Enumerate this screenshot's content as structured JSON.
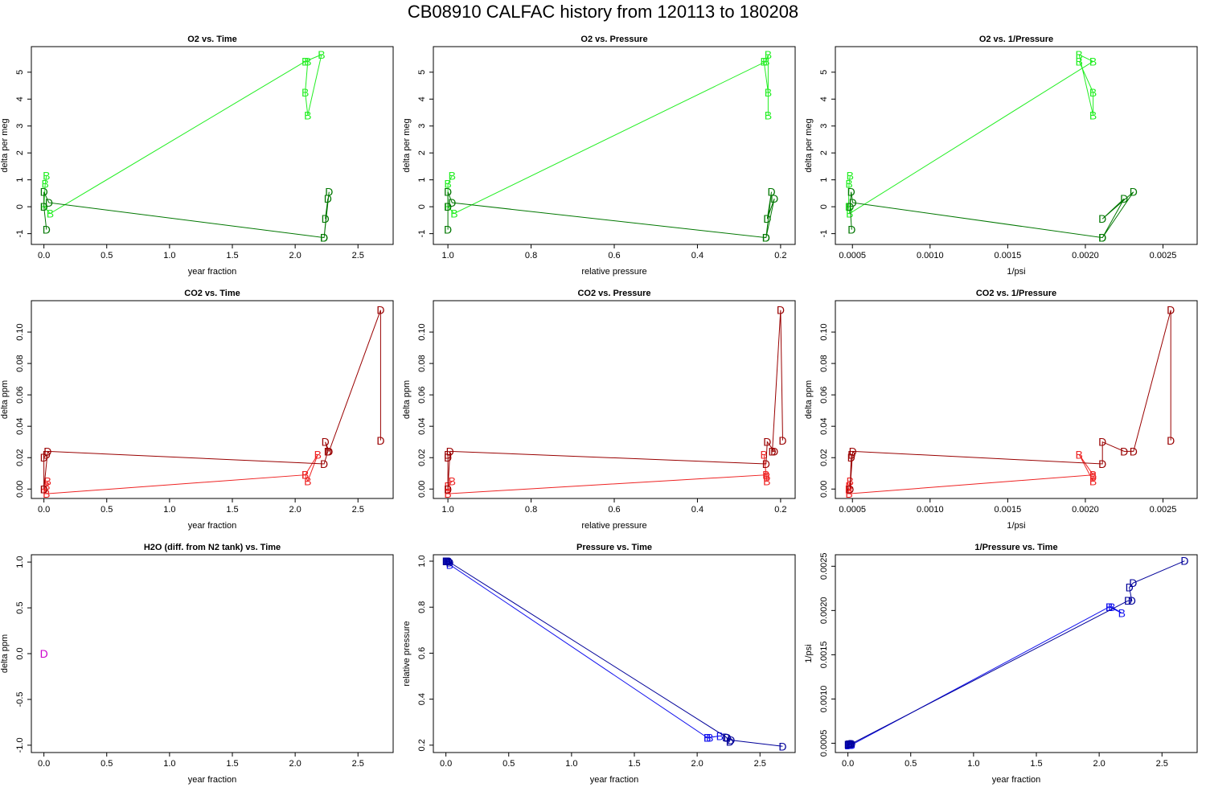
{
  "page": {
    "title": "CB08910   CALFAC history from  120113  to  180208"
  },
  "colors": {
    "o2_B": "#22ee22",
    "o2_D": "#007700",
    "co2_B": "#ee2222",
    "co2_D": "#990000",
    "h2o_D": "#cc00cc",
    "p_B": "#1111ee",
    "p_D": "#000099"
  },
  "chart_data": [
    {
      "type": "scatter",
      "title": "O2 vs. Time",
      "xlabel": "year fraction",
      "ylabel": "delta per meg",
      "xlim": [
        -0.1,
        2.78
      ],
      "ylim": [
        -1.4,
        5.95
      ],
      "reverse_x": false,
      "xticks": [
        0,
        0.5,
        1.0,
        1.5,
        2.0,
        2.5
      ],
      "xtick_labels": [
        "0.0",
        "0.5",
        "1.0",
        "1.5",
        "2.0",
        "2.5"
      ],
      "yticks": [
        -1,
        0,
        1,
        2,
        3,
        4,
        5
      ],
      "ytick_labels": [
        "-1",
        "0",
        "1",
        "2",
        "3",
        "4",
        "5"
      ],
      "series": [
        {
          "name": "B",
          "color": "o2_B",
          "x": [
            0.02,
            0.01,
            0.0,
            0.05,
            2.08,
            2.21,
            2.1,
            2.08,
            2.1
          ],
          "y": [
            1.15,
            0.85,
            0.0,
            -0.25,
            5.4,
            5.65,
            3.4,
            4.25,
            5.4
          ]
        },
        {
          "name": "D",
          "color": "o2_D",
          "x": [
            0.02,
            0.0,
            0.0,
            0.04,
            2.23,
            2.26,
            2.24,
            2.27,
            2.23
          ],
          "y": [
            -0.85,
            0.0,
            0.55,
            0.15,
            -1.15,
            0.3,
            -0.45,
            0.55,
            -1.15
          ]
        }
      ]
    },
    {
      "type": "scatter",
      "title": "O2 vs. Pressure",
      "xlabel": "relative pressure",
      "ylabel": "delta per meg",
      "xlim": [
        1.035,
        0.165
      ],
      "ylim": [
        -1.4,
        5.95
      ],
      "reverse_x": true,
      "xticks": [
        1.0,
        0.8,
        0.6,
        0.4,
        0.2
      ],
      "xtick_labels": [
        "1.0",
        "0.8",
        "0.6",
        "0.4",
        "0.2"
      ],
      "yticks": [
        -1,
        0,
        1,
        2,
        3,
        4,
        5
      ],
      "ytick_labels": [
        "-1",
        "0",
        "1",
        "2",
        "3",
        "4",
        "5"
      ],
      "series": [
        {
          "name": "B",
          "color": "o2_B",
          "x": [
            0.99,
            1.0,
            1.0,
            0.985,
            0.235,
            0.23,
            0.23,
            0.23,
            0.24
          ],
          "y": [
            1.15,
            0.85,
            0.0,
            -0.25,
            5.4,
            5.65,
            3.4,
            4.25,
            5.4
          ]
        },
        {
          "name": "D",
          "color": "o2_D",
          "x": [
            1.0,
            1.0,
            1.0,
            0.99,
            0.235,
            0.215,
            0.232,
            0.222,
            0.235
          ],
          "y": [
            -0.85,
            0.0,
            0.55,
            0.15,
            -1.15,
            0.3,
            -0.45,
            0.55,
            -1.15
          ]
        }
      ]
    },
    {
      "type": "scatter",
      "title": "O2 vs. 1/Pressure",
      "xlabel": "1/psi",
      "ylabel": "delta per meg",
      "xlim": [
        0.00039,
        0.00272
      ],
      "ylim": [
        -1.4,
        5.95
      ],
      "reverse_x": false,
      "xticks": [
        0.0005,
        0.001,
        0.0015,
        0.002,
        0.0025
      ],
      "xtick_labels": [
        "0.0005",
        "0.0010",
        "0.0015",
        "0.0020",
        "0.0025"
      ],
      "yticks": [
        -1,
        0,
        1,
        2,
        3,
        4,
        5
      ],
      "ytick_labels": [
        "-1",
        "0",
        "1",
        "2",
        "3",
        "4",
        "5"
      ],
      "series": [
        {
          "name": "B",
          "color": "o2_B",
          "x": [
            0.000485,
            0.000478,
            0.000475,
            0.000482,
            0.00205,
            0.00196,
            0.00205,
            0.00205,
            0.00196
          ],
          "y": [
            1.15,
            0.85,
            0.0,
            -0.25,
            5.4,
            5.65,
            3.4,
            4.25,
            5.4
          ]
        },
        {
          "name": "D",
          "color": "o2_D",
          "x": [
            0.000495,
            0.000485,
            0.000492,
            0.000502,
            0.00211,
            0.00225,
            0.00211,
            0.00231,
            0.00211
          ],
          "y": [
            -0.85,
            0.0,
            0.55,
            0.15,
            -1.15,
            0.3,
            -0.45,
            0.55,
            -1.15
          ]
        }
      ]
    },
    {
      "type": "scatter",
      "title": "CO2 vs. Time",
      "xlabel": "year fraction",
      "ylabel": "delta ppm",
      "xlim": [
        -0.1,
        2.78
      ],
      "ylim": [
        -0.006,
        0.12
      ],
      "reverse_x": false,
      "xticks": [
        0,
        0.5,
        1.0,
        1.5,
        2.0,
        2.5
      ],
      "xtick_labels": [
        "0.0",
        "0.5",
        "1.0",
        "1.5",
        "2.0",
        "2.5"
      ],
      "yticks": [
        0.0,
        0.02,
        0.04,
        0.06,
        0.08,
        0.1
      ],
      "ytick_labels": [
        "0.00",
        "0.02",
        "0.04",
        "0.06",
        "0.08",
        "0.10"
      ],
      "series": [
        {
          "name": "B",
          "color": "co2_B",
          "x": [
            0.03,
            0.02,
            0.0,
            0.02,
            2.08,
            2.18,
            2.1,
            2.08
          ],
          "y": [
            0.005,
            0.002,
            0.0,
            -0.003,
            0.009,
            0.022,
            0.005,
            0.009
          ]
        },
        {
          "name": "D",
          "color": "co2_D",
          "x": [
            0.02,
            0.0,
            0.0,
            0.03,
            2.23,
            2.26,
            2.24,
            2.27,
            2.68,
            2.68
          ],
          "y": [
            0.022,
            0.02,
            0.0,
            0.024,
            0.016,
            0.024,
            0.03,
            0.024,
            0.114,
            0.031
          ]
        }
      ]
    },
    {
      "type": "scatter",
      "title": "CO2 vs. Pressure",
      "xlabel": "relative pressure",
      "ylabel": "delta ppm",
      "xlim": [
        1.035,
        0.165
      ],
      "ylim": [
        -0.006,
        0.12
      ],
      "reverse_x": true,
      "xticks": [
        1.0,
        0.8,
        0.6,
        0.4,
        0.2
      ],
      "xtick_labels": [
        "1.0",
        "0.8",
        "0.6",
        "0.4",
        "0.2"
      ],
      "yticks": [
        0.0,
        0.02,
        0.04,
        0.06,
        0.08,
        0.1
      ],
      "ytick_labels": [
        "0.00",
        "0.02",
        "0.04",
        "0.06",
        "0.08",
        "0.10"
      ],
      "series": [
        {
          "name": "B",
          "color": "co2_B",
          "x": [
            0.99,
            1.0,
            1.0,
            1.0,
            0.235,
            0.24,
            0.233,
            0.233
          ],
          "y": [
            0.005,
            0.002,
            0.0,
            -0.003,
            0.009,
            0.022,
            0.005,
            0.008
          ]
        },
        {
          "name": "D",
          "color": "co2_D",
          "x": [
            1.0,
            1.0,
            1.0,
            0.995,
            0.235,
            0.232,
            0.215,
            0.22,
            0.2,
            0.195
          ],
          "y": [
            0.022,
            0.02,
            0.0,
            0.024,
            0.016,
            0.03,
            0.024,
            0.024,
            0.114,
            0.031
          ]
        }
      ]
    },
    {
      "type": "scatter",
      "title": "CO2 vs. 1/Pressure",
      "xlabel": "1/psi",
      "ylabel": "delta ppm",
      "xlim": [
        0.00039,
        0.00272
      ],
      "ylim": [
        -0.006,
        0.12
      ],
      "reverse_x": false,
      "xticks": [
        0.0005,
        0.001,
        0.0015,
        0.002,
        0.0025
      ],
      "xtick_labels": [
        "0.0005",
        "0.0010",
        "0.0015",
        "0.0020",
        "0.0025"
      ],
      "yticks": [
        0.0,
        0.02,
        0.04,
        0.06,
        0.08,
        0.1
      ],
      "ytick_labels": [
        "0.00",
        "0.02",
        "0.04",
        "0.06",
        "0.08",
        "0.10"
      ],
      "series": [
        {
          "name": "B",
          "color": "co2_B",
          "x": [
            0.000485,
            0.000478,
            0.000475,
            0.000478,
            0.00205,
            0.00196,
            0.00205,
            0.00205
          ],
          "y": [
            0.005,
            0.002,
            0.0,
            -0.003,
            0.009,
            0.022,
            0.005,
            0.008
          ]
        },
        {
          "name": "D",
          "color": "co2_D",
          "x": [
            0.000495,
            0.000492,
            0.000485,
            0.000502,
            0.00211,
            0.00211,
            0.00225,
            0.00231,
            0.00255,
            0.00255
          ],
          "y": [
            0.022,
            0.02,
            0.0,
            0.024,
            0.016,
            0.03,
            0.024,
            0.024,
            0.114,
            0.031
          ]
        }
      ]
    },
    {
      "type": "scatter",
      "title": "H2O (diff. from N2 tank) vs. Time",
      "xlabel": "year fraction",
      "ylabel": "delta ppm",
      "xlim": [
        -0.1,
        2.78
      ],
      "ylim": [
        -1.08,
        1.08
      ],
      "reverse_x": false,
      "xticks": [
        0,
        0.5,
        1.0,
        1.5,
        2.0,
        2.5
      ],
      "xtick_labels": [
        "0.0",
        "0.5",
        "1.0",
        "1.5",
        "2.0",
        "2.5"
      ],
      "yticks": [
        -1.0,
        -0.5,
        0.0,
        0.5,
        1.0
      ],
      "ytick_labels": [
        "-1.0",
        "-0.5",
        "0.0",
        "0.5",
        "1.0"
      ],
      "series": [
        {
          "name": "D",
          "color": "h2o_D",
          "x": [
            0.0
          ],
          "y": [
            0.0
          ]
        }
      ]
    },
    {
      "type": "scatter",
      "title": "Pressure vs. Time",
      "xlabel": "year fraction",
      "ylabel": "relative pressure",
      "xlim": [
        -0.1,
        2.78
      ],
      "ylim": [
        0.168,
        1.028
      ],
      "reverse_x": false,
      "xticks": [
        0,
        0.5,
        1.0,
        1.5,
        2.0,
        2.5
      ],
      "xtick_labels": [
        "0.0",
        "0.5",
        "1.0",
        "1.5",
        "2.0",
        "2.5"
      ],
      "yticks": [
        0.2,
        0.4,
        0.6,
        0.8,
        1.0
      ],
      "ytick_labels": [
        "0.2",
        "0.4",
        "0.6",
        "0.8",
        "1.0"
      ],
      "series": [
        {
          "name": "B",
          "color": "p_B",
          "x": [
            0.0,
            0.01,
            0.02,
            0.03,
            2.08,
            2.1,
            2.18,
            2.08
          ],
          "y": [
            1.0,
            1.0,
            1.0,
            0.985,
            0.233,
            0.233,
            0.24,
            0.233
          ]
        },
        {
          "name": "D",
          "color": "p_D",
          "x": [
            0.0,
            0.01,
            0.02,
            0.03,
            2.23,
            2.26,
            2.24,
            2.27,
            2.68
          ],
          "y": [
            1.0,
            1.0,
            1.0,
            0.995,
            0.235,
            0.215,
            0.232,
            0.222,
            0.195
          ]
        }
      ]
    },
    {
      "type": "scatter",
      "title": "1/Pressure vs. Time",
      "xlabel": "year fraction",
      "ylabel": "1/psi",
      "xlim": [
        -0.1,
        2.78
      ],
      "ylim": [
        0.000395,
        0.00263
      ],
      "reverse_x": false,
      "xticks": [
        0,
        0.5,
        1.0,
        1.5,
        2.0,
        2.5
      ],
      "xtick_labels": [
        "0.0",
        "0.5",
        "1.0",
        "1.5",
        "2.0",
        "2.5"
      ],
      "yticks": [
        0.0005,
        0.001,
        0.0015,
        0.002,
        0.0025
      ],
      "ytick_labels": [
        "0.0005",
        "0.0010",
        "0.0015",
        "0.0020",
        "0.0025"
      ],
      "series": [
        {
          "name": "B",
          "color": "p_B",
          "x": [
            0.0,
            0.01,
            0.02,
            0.03,
            2.08,
            2.1,
            2.18,
            2.08
          ],
          "y": [
            0.000475,
            0.00048,
            0.00048,
            0.000482,
            0.00204,
            0.00204,
            0.00197,
            0.00204
          ]
        },
        {
          "name": "D",
          "color": "p_D",
          "x": [
            0.0,
            0.01,
            0.02,
            0.03,
            2.23,
            2.26,
            2.24,
            2.27,
            2.68
          ],
          "y": [
            0.000485,
            0.00049,
            0.00049,
            0.000495,
            0.00211,
            0.00211,
            0.00226,
            0.00231,
            0.00256
          ]
        }
      ]
    }
  ]
}
